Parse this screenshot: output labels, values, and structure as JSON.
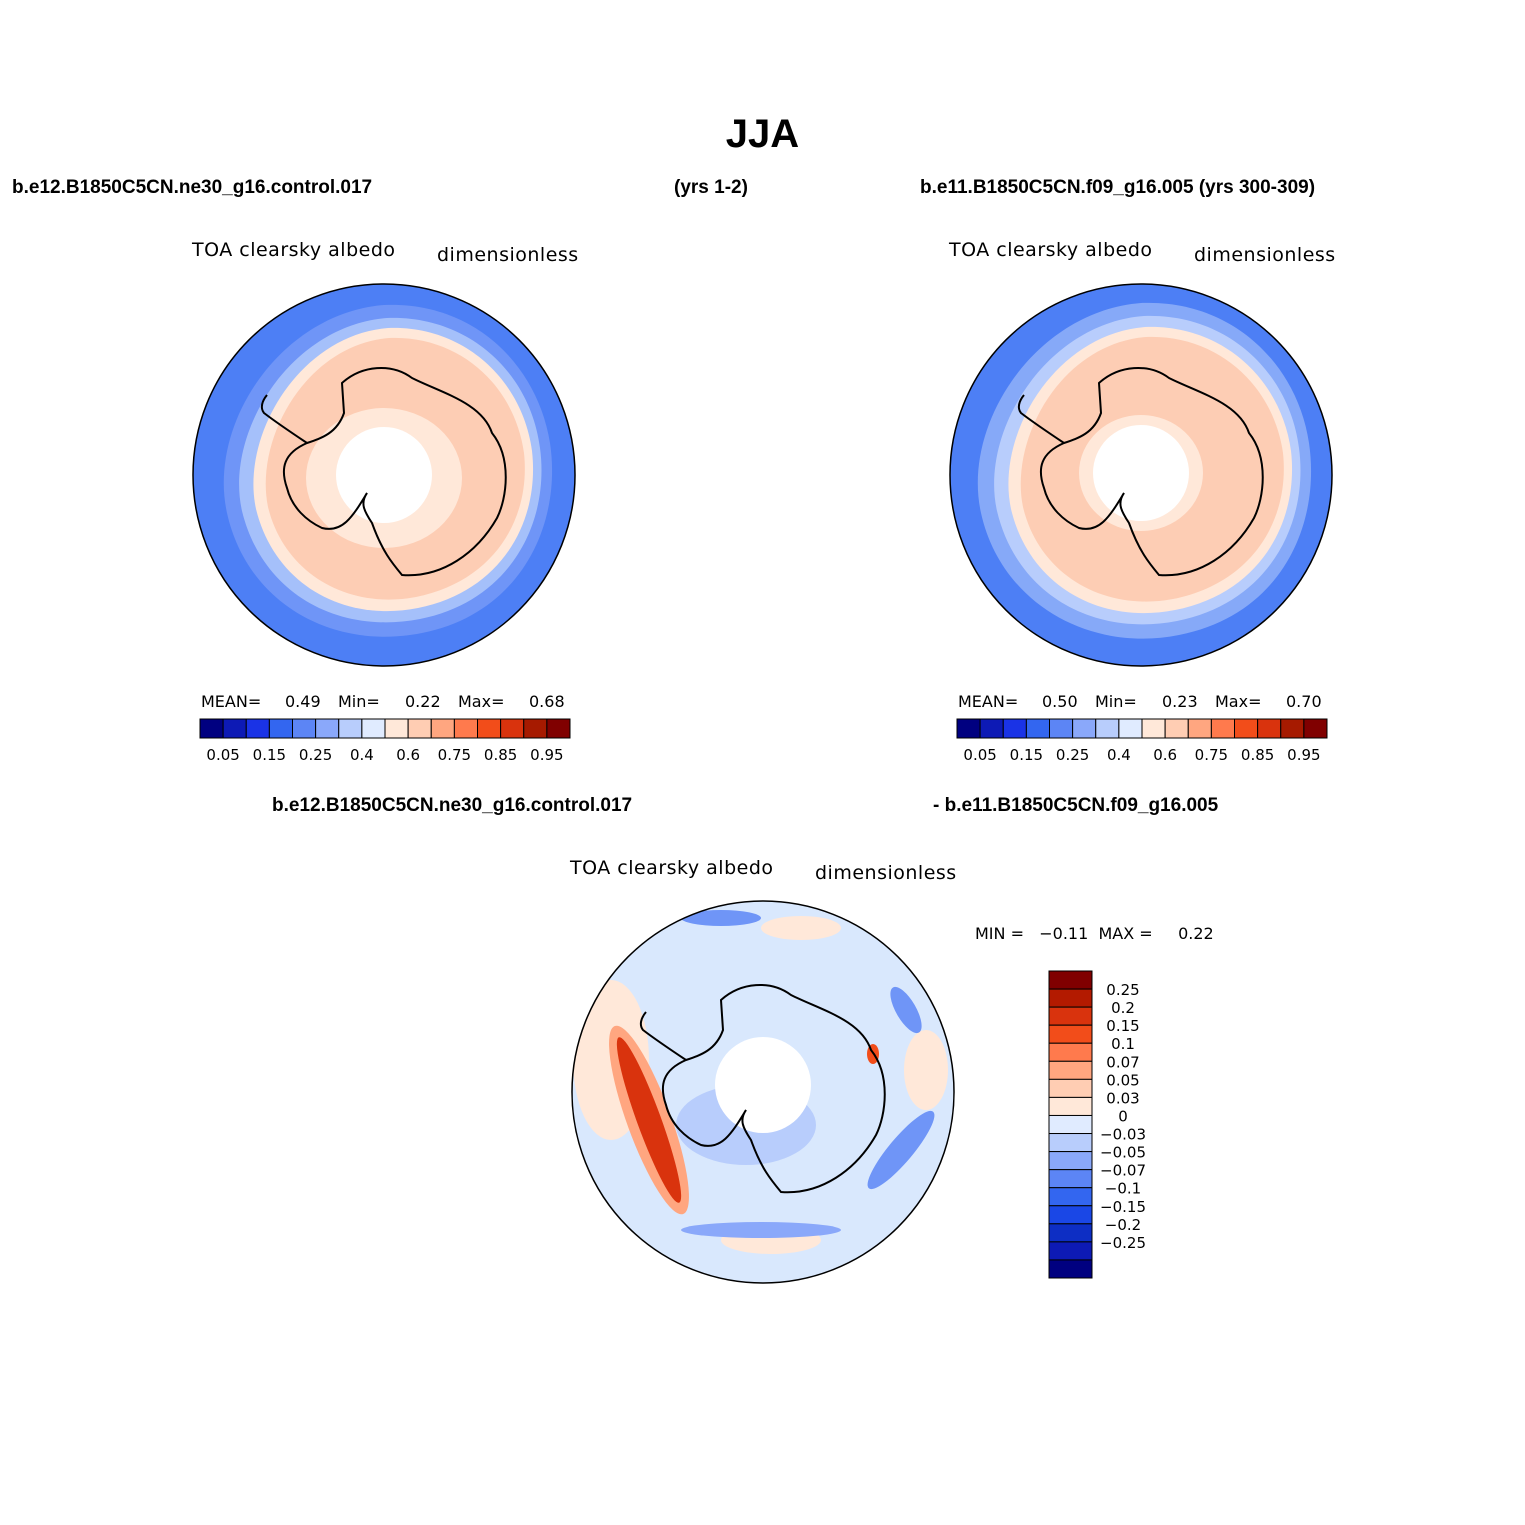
{
  "title": "JJA",
  "panels": {
    "top_left": {
      "case": "b.e12.B1850C5CN.ne30_g16.control.017",
      "variable": "TOA clearsky albedo",
      "units": "dimensionless",
      "mean_label": "MEAN=",
      "mean": "0.49",
      "min_label": "Min=",
      "min": "0.22",
      "max_label": "Max=",
      "max": "0.68"
    },
    "top_middle": {
      "years": "(yrs 1-2)"
    },
    "top_right": {
      "case": "b.e11.B1850C5CN.f09_g16.005 (yrs 300-309)",
      "variable": "TOA clearsky albedo",
      "units": "dimensionless",
      "mean_label": "MEAN=",
      "mean": "0.50",
      "min_label": "Min=",
      "min": "0.23",
      "max_label": "Max=",
      "max": "0.70"
    },
    "bottom": {
      "case_a": "b.e12.B1850C5CN.ne30_g16.control.017",
      "case_b": "- b.e11.B1850C5CN.f09_g16.005",
      "variable": "TOA clearsky albedo",
      "units": "dimensionless",
      "minmax_text": "MIN =   −0.11  MAX =     0.22"
    }
  },
  "colorbars": {
    "horizontal": {
      "colors": [
        "#000080",
        "#0d1ab5",
        "#1a33e6",
        "#3366f0",
        "#5c85f5",
        "#8aa8fa",
        "#b8cdfc",
        "#e0ebff",
        "#ffe8d9",
        "#ffcdb3",
        "#ffa680",
        "#ff7a4d",
        "#f24d1a",
        "#d9330d",
        "#a61a00",
        "#800000"
      ],
      "labels": [
        "0.05",
        "0.15",
        "0.25",
        "0.4",
        "0.6",
        "0.75",
        "0.85",
        "0.95"
      ]
    },
    "vertical": {
      "colors": [
        "#800000",
        "#b31a00",
        "#d9330d",
        "#f24d1a",
        "#ff7a4d",
        "#ffa680",
        "#ffcdb3",
        "#ffe8d9",
        "#e0ebff",
        "#b8cdfc",
        "#8aa8fa",
        "#5c85f5",
        "#3366f0",
        "#1a47e6",
        "#0d2ec4",
        "#0d1ab5",
        "#000080"
      ],
      "labels": [
        "0.25",
        "0.2",
        "0.15",
        "0.1",
        "0.07",
        "0.05",
        "0.03",
        "0",
        "−0.03",
        "−0.05",
        "−0.07",
        "−0.1",
        "−0.15",
        "−0.2",
        "−0.25"
      ]
    }
  }
}
